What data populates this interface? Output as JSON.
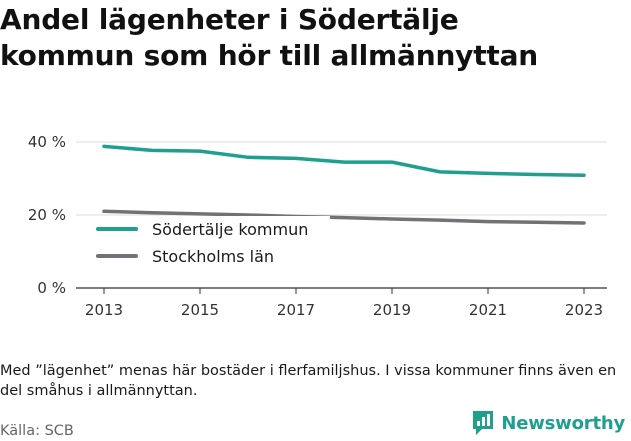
{
  "header": {
    "title_lines": [
      "Andel lägenheter i Södertälje",
      "kommun som hör till allmännyttan"
    ]
  },
  "chart_data": {
    "type": "line",
    "x": [
      2013,
      2014,
      2015,
      2016,
      2017,
      2018,
      2019,
      2020,
      2021,
      2022,
      2023
    ],
    "x_ticks": [
      2013,
      2015,
      2017,
      2019,
      2021,
      2023
    ],
    "y_ticks": [
      0,
      20,
      40
    ],
    "y_tick_labels": [
      "0 %",
      "20 %",
      "40 %"
    ],
    "ylim": [
      0,
      40
    ],
    "grid": true,
    "legend_position": "center-left",
    "series": [
      {
        "name": "Södertälje kommun",
        "color": "#1fa08f",
        "values": [
          38.8,
          37.7,
          37.5,
          35.8,
          35.5,
          34.5,
          34.5,
          31.8,
          31.4,
          31.1,
          30.9
        ]
      },
      {
        "name": "Stockholms län",
        "color": "#717176",
        "values": [
          21.0,
          20.6,
          20.3,
          20.0,
          19.6,
          19.3,
          18.9,
          18.6,
          18.2,
          18.0,
          17.8
        ]
      }
    ]
  },
  "footer": {
    "note": "Med ”lägenhet” menas här bostäder i flerfamiljshus. I vissa kommuner finns även en del småhus i allmännyttan.",
    "source": "Källa: SCB",
    "brand": "Newsworthy"
  },
  "icons": {
    "brand": "newsworthy-logo-icon"
  },
  "colors": {
    "brand": "#1fa08f"
  }
}
